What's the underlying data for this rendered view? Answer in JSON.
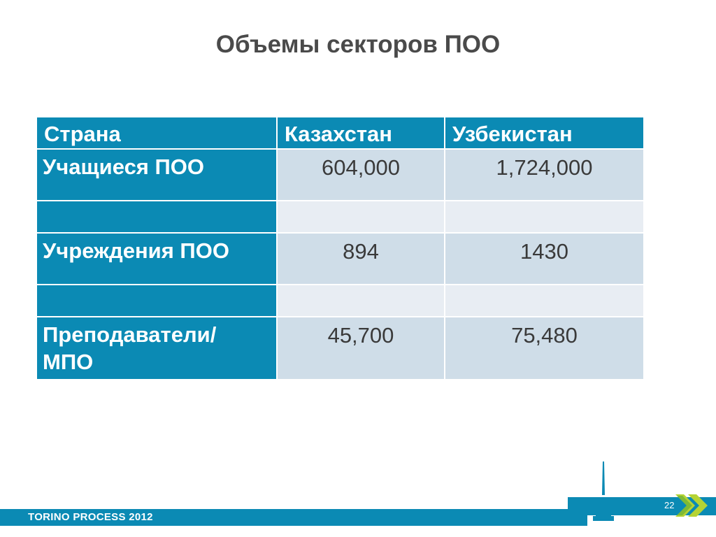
{
  "title": "Объемы секторов ПОО",
  "table": {
    "headers": [
      "Страна",
      "Казахстан",
      "Узбекистан"
    ],
    "rows": [
      {
        "label": "Учащиеся ПОО",
        "kz": "604,000",
        "uz": "1,724,000"
      },
      {
        "label": "",
        "kz": "",
        "uz": ""
      },
      {
        "label": "Учреждения ПОО",
        "kz": "894",
        "uz": "1430"
      },
      {
        "label": "",
        "kz": "",
        "uz": ""
      },
      {
        "label": "Преподаватели/ МПО",
        "kz": "45,700",
        "uz": "75,480"
      }
    ]
  },
  "footer": {
    "text": "TORINO PROCESS 2012",
    "page_number": "22"
  },
  "colors": {
    "accent": "#0b8ab4",
    "cell_dark": "#cfdde8",
    "cell_light": "#e8edf3",
    "arrow_green": "#b5d334"
  },
  "icons": [
    "tower-icon",
    "double-chevron-icon"
  ]
}
